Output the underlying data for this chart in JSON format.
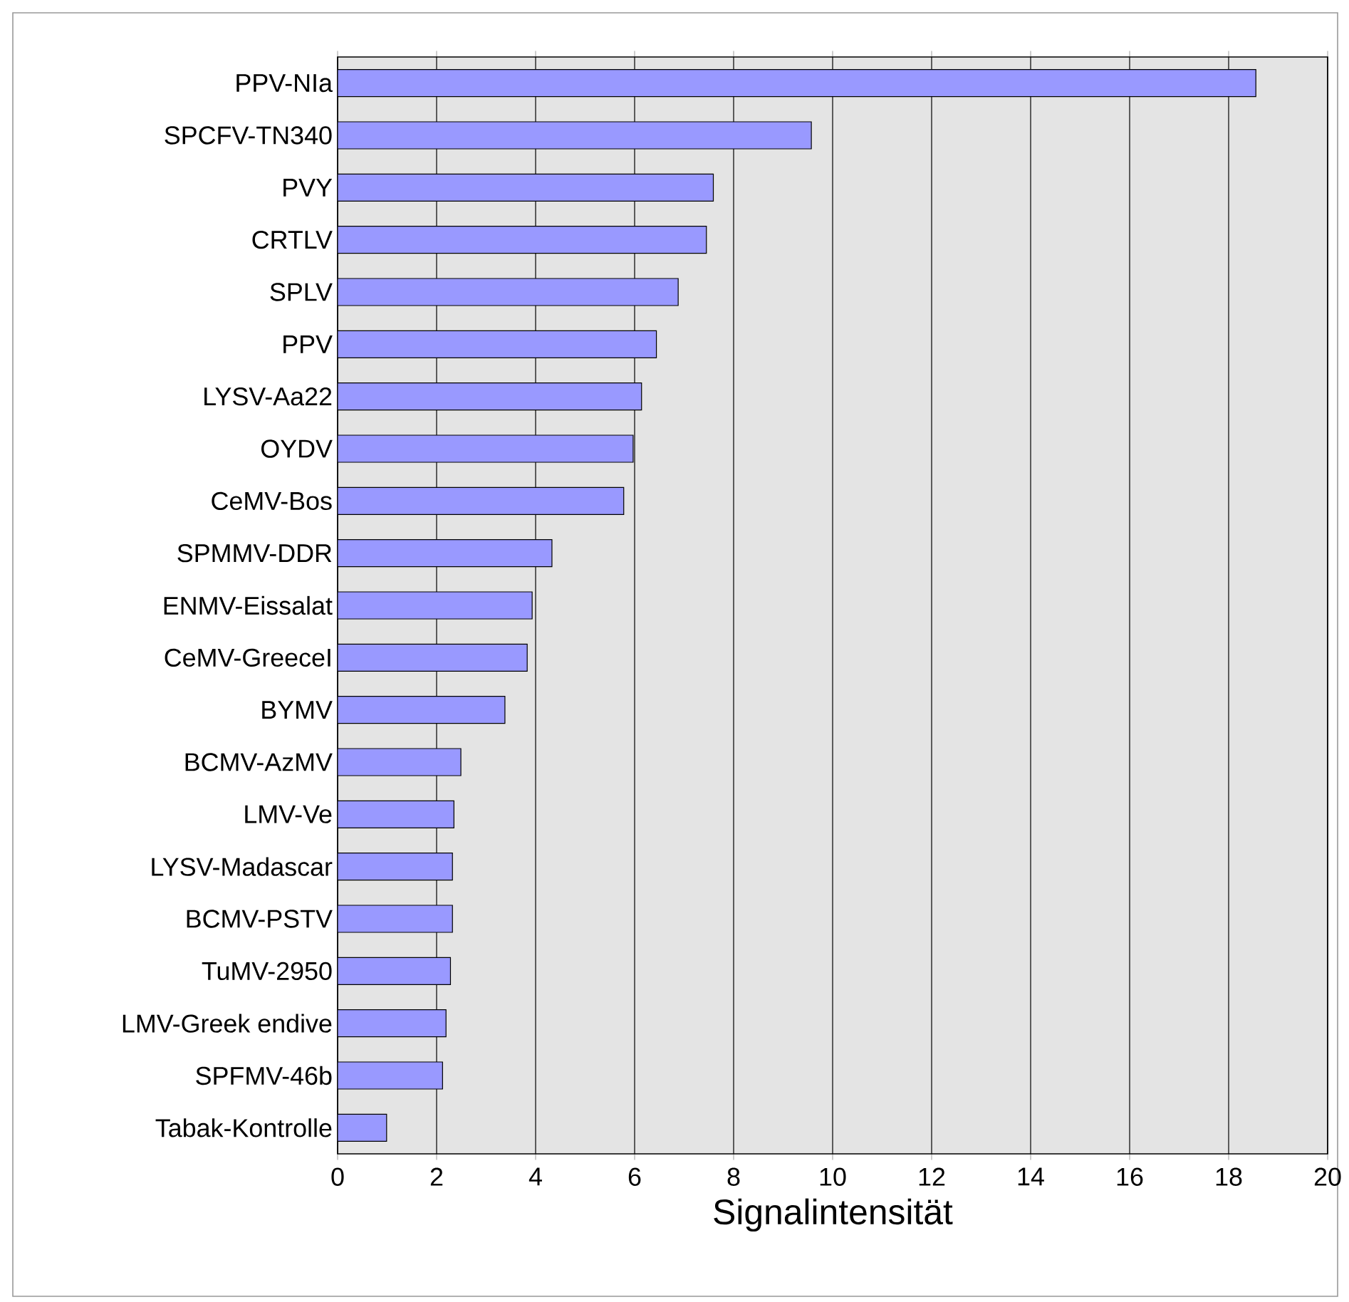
{
  "chart_data": {
    "type": "bar",
    "orientation": "horizontal",
    "xlabel": "Signalintensität",
    "categories": [
      "PPV-NIa",
      "SPCFV-TN340",
      "PVY",
      "CRTLV",
      "SPLV",
      "PPV",
      "LYSV-Aa22",
      "OYDV",
      "CeMV-Bos",
      "SPMMV-DDR",
      "ENMV-Eissalat",
      "CeMV-GreeceI",
      "BYMV",
      "BCMV-AzMV",
      "LMV-Ve",
      "LYSV-Madascar",
      "BCMV-PSTV",
      "TuMV-2950",
      "LMV-Greek endive",
      "SPFMV-46b",
      "Tabak-Kontrolle"
    ],
    "values": [
      18.55,
      9.57,
      7.59,
      7.45,
      6.88,
      6.44,
      6.14,
      5.97,
      5.78,
      4.33,
      3.93,
      3.83,
      3.38,
      2.49,
      2.35,
      2.32,
      2.32,
      2.28,
      2.19,
      2.12,
      0.99
    ],
    "color": "#9999ff",
    "xlim": [
      0,
      20
    ],
    "xticks": [
      0,
      2,
      4,
      6,
      8,
      10,
      12,
      14,
      16,
      18,
      20
    ],
    "grid": "x"
  }
}
